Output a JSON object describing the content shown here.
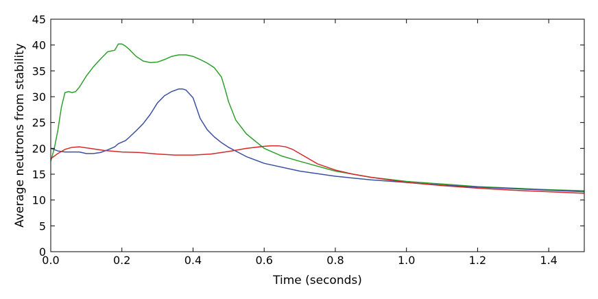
{
  "chart_data": {
    "type": "line",
    "title": "",
    "xlabel": "Time (seconds)",
    "ylabel": "Average neutrons from stability",
    "xlim": [
      0.0,
      1.5
    ],
    "ylim": [
      0,
      45
    ],
    "grid": false,
    "xticks": [
      0.0,
      0.2,
      0.4,
      0.6,
      0.8,
      1.0,
      1.2,
      1.4
    ],
    "xtick_labels": [
      "0.0",
      "0.2",
      "0.4",
      "0.6",
      "0.8",
      "1.0",
      "1.2",
      "1.4"
    ],
    "yticks": [
      0,
      5,
      10,
      15,
      20,
      25,
      30,
      35,
      40,
      45
    ],
    "ytick_labels": [
      "0",
      "5",
      "10",
      "15",
      "20",
      "25",
      "30",
      "35",
      "40",
      "45"
    ],
    "series": [
      {
        "color": "#2ca02c",
        "x": [
          0.0,
          0.01,
          0.02,
          0.03,
          0.04,
          0.05,
          0.06,
          0.07,
          0.08,
          0.1,
          0.12,
          0.14,
          0.16,
          0.18,
          0.19,
          0.2,
          0.21,
          0.22,
          0.24,
          0.26,
          0.28,
          0.3,
          0.32,
          0.34,
          0.36,
          0.38,
          0.4,
          0.42,
          0.44,
          0.46,
          0.48,
          0.49,
          0.5,
          0.52,
          0.55,
          0.6,
          0.65,
          0.7,
          0.8,
          0.9,
          1.0,
          1.1,
          1.2,
          1.3,
          1.4,
          1.5
        ],
        "y": [
          17.5,
          20.0,
          23.5,
          28.0,
          30.8,
          31.0,
          30.8,
          31.0,
          31.8,
          34.0,
          35.8,
          37.3,
          38.7,
          39.0,
          40.2,
          40.2,
          39.8,
          39.2,
          37.8,
          36.9,
          36.6,
          36.7,
          37.2,
          37.8,
          38.1,
          38.1,
          37.8,
          37.2,
          36.5,
          35.6,
          33.8,
          31.5,
          29.0,
          25.5,
          22.8,
          20.0,
          18.5,
          17.5,
          15.6,
          14.4,
          13.6,
          13.1,
          12.6,
          12.3,
          12.0,
          11.8
        ]
      },
      {
        "color": "#3a4fa0",
        "x": [
          0.0,
          0.02,
          0.04,
          0.06,
          0.08,
          0.1,
          0.12,
          0.14,
          0.16,
          0.18,
          0.19,
          0.2,
          0.21,
          0.22,
          0.24,
          0.26,
          0.28,
          0.3,
          0.32,
          0.34,
          0.36,
          0.37,
          0.38,
          0.4,
          0.42,
          0.44,
          0.46,
          0.48,
          0.5,
          0.55,
          0.6,
          0.7,
          0.8,
          0.9,
          1.0,
          1.1,
          1.2,
          1.3,
          1.4,
          1.5
        ],
        "y": [
          20.0,
          19.5,
          19.3,
          19.3,
          19.3,
          19.0,
          19.0,
          19.2,
          19.7,
          20.3,
          20.9,
          21.2,
          21.5,
          22.1,
          23.4,
          24.8,
          26.6,
          28.8,
          30.2,
          31.0,
          31.5,
          31.5,
          31.3,
          29.8,
          25.8,
          23.6,
          22.2,
          21.1,
          20.2,
          18.4,
          17.1,
          15.6,
          14.6,
          13.9,
          13.4,
          12.9,
          12.5,
          12.2,
          11.9,
          11.6
        ]
      },
      {
        "color": "#d62728",
        "x": [
          0.0,
          0.02,
          0.04,
          0.06,
          0.08,
          0.1,
          0.15,
          0.2,
          0.25,
          0.3,
          0.35,
          0.4,
          0.45,
          0.5,
          0.55,
          0.6,
          0.62,
          0.64,
          0.66,
          0.68,
          0.7,
          0.75,
          0.8,
          0.85,
          0.9,
          1.0,
          1.1,
          1.2,
          1.3,
          1.4,
          1.5
        ],
        "y": [
          18.0,
          19.0,
          19.8,
          20.2,
          20.3,
          20.1,
          19.6,
          19.3,
          19.2,
          18.9,
          18.7,
          18.7,
          18.9,
          19.4,
          20.0,
          20.4,
          20.5,
          20.5,
          20.3,
          19.8,
          19.0,
          17.0,
          15.8,
          15.0,
          14.4,
          13.4,
          12.8,
          12.3,
          11.9,
          11.6,
          11.3
        ]
      }
    ]
  }
}
